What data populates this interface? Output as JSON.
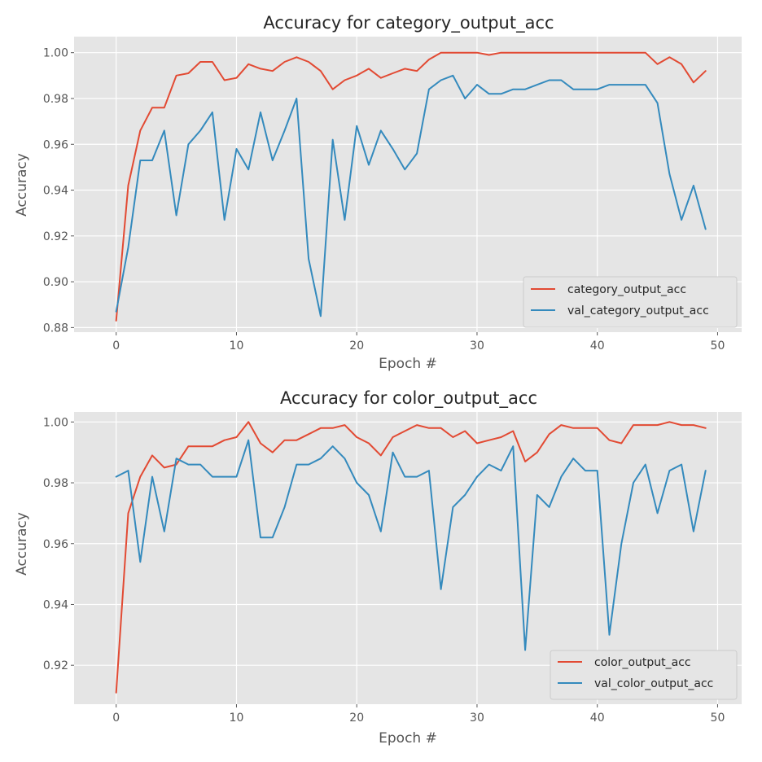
{
  "colors": {
    "train": "#e24a33",
    "val": "#348abd",
    "panel_bg": "#e5e5e5",
    "grid": "#ffffff"
  },
  "chart_data": [
    {
      "type": "line",
      "title": "Accuracy for category_output_acc",
      "xlabel": "Epoch #",
      "ylabel": "Accuracy",
      "xlim": [
        -3.5,
        52
      ],
      "ylim": [
        0.878,
        1.007
      ],
      "xticks": [
        0,
        10,
        20,
        30,
        40,
        50
      ],
      "xtick_labels": [
        "0",
        "10",
        "20",
        "30",
        "40",
        "50"
      ],
      "yticks": [
        0.88,
        0.9,
        0.92,
        0.94,
        0.96,
        0.98,
        1.0
      ],
      "ytick_labels": [
        "0.88",
        "0.90",
        "0.92",
        "0.94",
        "0.96",
        "0.98",
        "1.00"
      ],
      "grid": true,
      "legend_position": "lower-right",
      "x": [
        0,
        1,
        2,
        3,
        4,
        5,
        6,
        7,
        8,
        9,
        10,
        11,
        12,
        13,
        14,
        15,
        16,
        17,
        18,
        19,
        20,
        21,
        22,
        23,
        24,
        25,
        26,
        27,
        28,
        29,
        30,
        31,
        32,
        33,
        34,
        35,
        36,
        37,
        38,
        39,
        40,
        41,
        42,
        43,
        44,
        45,
        46,
        47,
        48,
        49
      ],
      "series": [
        {
          "name": "category_output_acc",
          "color": "#e24a33",
          "values": [
            0.883,
            0.942,
            0.966,
            0.976,
            0.976,
            0.99,
            0.991,
            0.996,
            0.996,
            0.988,
            0.989,
            0.995,
            0.993,
            0.992,
            0.996,
            0.998,
            0.996,
            0.992,
            0.984,
            0.988,
            0.99,
            0.993,
            0.989,
            0.991,
            0.993,
            0.992,
            0.997,
            1.0,
            1.0,
            1.0,
            1.0,
            0.999,
            1.0,
            1.0,
            1.0,
            1.0,
            1.0,
            1.0,
            1.0,
            1.0,
            1.0,
            1.0,
            1.0,
            1.0,
            1.0,
            0.995,
            0.998,
            0.995,
            0.987,
            0.992
          ]
        },
        {
          "name": "val_category_output_acc",
          "color": "#348abd",
          "values": [
            0.887,
            0.915,
            0.953,
            0.953,
            0.966,
            0.929,
            0.96,
            0.966,
            0.974,
            0.927,
            0.958,
            0.949,
            0.974,
            0.953,
            0.966,
            0.98,
            0.91,
            0.885,
            0.962,
            0.927,
            0.968,
            0.951,
            0.966,
            0.958,
            0.949,
            0.956,
            0.984,
            0.988,
            0.99,
            0.98,
            0.986,
            0.982,
            0.982,
            0.984,
            0.984,
            0.986,
            0.988,
            0.988,
            0.984,
            0.984,
            0.984,
            0.986,
            0.986,
            0.986,
            0.986,
            0.978,
            0.947,
            0.927,
            0.942,
            0.923
          ]
        }
      ]
    },
    {
      "type": "line",
      "title": "Accuracy for color_output_acc",
      "xlabel": "Epoch #",
      "ylabel": "Accuracy",
      "xlim": [
        -3.5,
        52
      ],
      "ylim": [
        0.9072,
        1.0033
      ],
      "xticks": [
        0,
        10,
        20,
        30,
        40,
        50
      ],
      "xtick_labels": [
        "0",
        "10",
        "20",
        "30",
        "40",
        "50"
      ],
      "yticks": [
        0.92,
        0.94,
        0.96,
        0.98,
        1.0
      ],
      "ytick_labels": [
        "0.92",
        "0.94",
        "0.96",
        "0.98",
        "1.00"
      ],
      "grid": true,
      "legend_position": "lower-right",
      "x": [
        0,
        1,
        2,
        3,
        4,
        5,
        6,
        7,
        8,
        9,
        10,
        11,
        12,
        13,
        14,
        15,
        16,
        17,
        18,
        19,
        20,
        21,
        22,
        23,
        24,
        25,
        26,
        27,
        28,
        29,
        30,
        31,
        32,
        33,
        34,
        35,
        36,
        37,
        38,
        39,
        40,
        41,
        42,
        43,
        44,
        45,
        46,
        47,
        48,
        49
      ],
      "series": [
        {
          "name": "color_output_acc",
          "color": "#e24a33",
          "values": [
            0.911,
            0.97,
            0.982,
            0.989,
            0.985,
            0.986,
            0.992,
            0.992,
            0.992,
            0.994,
            0.995,
            1.0,
            0.993,
            0.99,
            0.994,
            0.994,
            0.996,
            0.998,
            0.998,
            0.999,
            0.995,
            0.993,
            0.989,
            0.995,
            0.997,
            0.999,
            0.998,
            0.998,
            0.995,
            0.997,
            0.993,
            0.994,
            0.995,
            0.997,
            0.987,
            0.99,
            0.996,
            0.999,
            0.998,
            0.998,
            0.998,
            0.994,
            0.993,
            0.999,
            0.999,
            0.999,
            1.0,
            0.999,
            0.999,
            0.998
          ]
        },
        {
          "name": "val_color_output_acc",
          "color": "#348abd",
          "values": [
            0.982,
            0.984,
            0.954,
            0.982,
            0.964,
            0.988,
            0.986,
            0.986,
            0.982,
            0.982,
            0.982,
            0.994,
            0.962,
            0.962,
            0.972,
            0.986,
            0.986,
            0.988,
            0.992,
            0.988,
            0.98,
            0.976,
            0.964,
            0.99,
            0.982,
            0.982,
            0.984,
            0.945,
            0.972,
            0.976,
            0.982,
            0.986,
            0.984,
            0.992,
            0.925,
            0.976,
            0.972,
            0.982,
            0.988,
            0.984,
            0.984,
            0.93,
            0.96,
            0.98,
            0.986,
            0.97,
            0.984,
            0.986,
            0.964,
            0.984
          ]
        }
      ]
    }
  ]
}
